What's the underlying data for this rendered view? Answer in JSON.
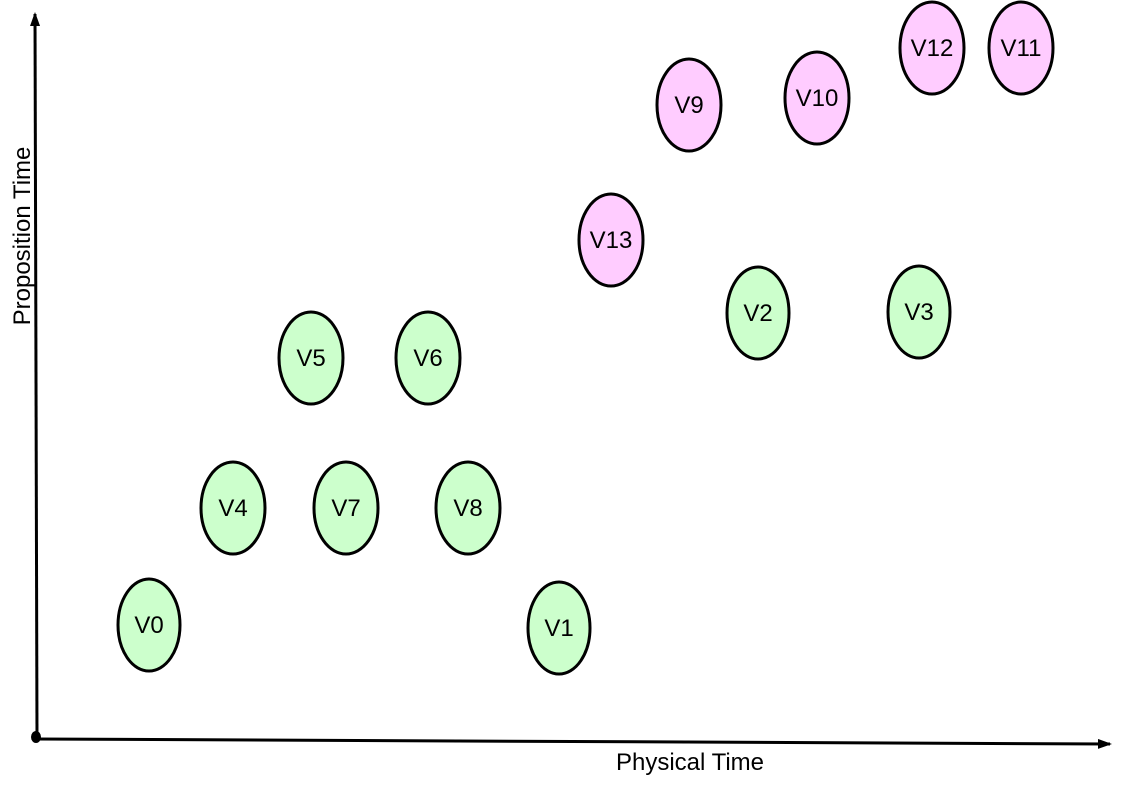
{
  "axes": {
    "x_label": "Physical Time",
    "y_label": "Proposition Time"
  },
  "colors": {
    "green": "#ccffcc",
    "pink": "#ffccff",
    "stroke": "#000000",
    "axis": "#000000"
  },
  "nodes": [
    {
      "id": "V0",
      "label": "V0",
      "color": "green"
    },
    {
      "id": "V1",
      "label": "V1",
      "color": "green"
    },
    {
      "id": "V2",
      "label": "V2",
      "color": "green"
    },
    {
      "id": "V3",
      "label": "V3",
      "color": "green"
    },
    {
      "id": "V4",
      "label": "V4",
      "color": "green"
    },
    {
      "id": "V5",
      "label": "V5",
      "color": "green"
    },
    {
      "id": "V6",
      "label": "V6",
      "color": "green"
    },
    {
      "id": "V7",
      "label": "V7",
      "color": "green"
    },
    {
      "id": "V8",
      "label": "V8",
      "color": "green"
    },
    {
      "id": "V9",
      "label": "V9",
      "color": "pink"
    },
    {
      "id": "V10",
      "label": "V10",
      "color": "pink"
    },
    {
      "id": "V11",
      "label": "V11",
      "color": "pink"
    },
    {
      "id": "V12",
      "label": "V12",
      "color": "pink"
    },
    {
      "id": "V13",
      "label": "V13",
      "color": "pink"
    }
  ]
}
